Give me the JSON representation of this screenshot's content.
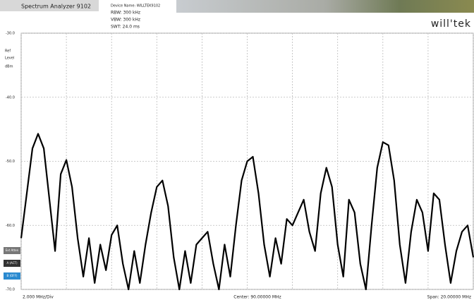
{
  "header": {
    "title": "Spectrum Analyzer 9102",
    "device": "Device Name: WILLTEK9102",
    "rbw": "RBW:  300 kHz",
    "vbw": "VBW:  300 kHz",
    "swt": "SWT:  24.0 ms",
    "logo": "will'tek"
  },
  "side_buttons": [
    "Ext Atten",
    "A (ACT)",
    "B (OFF)"
  ],
  "chart_data": {
    "type": "line",
    "y_label": [
      "Ref",
      "Level",
      "dBm"
    ],
    "x_div_label": "2.000 MHz/Div",
    "center_label": "Center: 90.00000 MHz",
    "span_label": "Span: 20.00000 MHz",
    "xlim": [
      80,
      100
    ],
    "xticks": [
      80,
      82,
      84,
      86,
      88,
      90,
      92,
      94,
      96,
      98,
      100
    ],
    "ylim": [
      -70,
      -30
    ],
    "yticks": [
      {
        "value": -30,
        "label": "-30.0"
      },
      {
        "value": -40,
        "label": "-40.0"
      },
      {
        "value": -50,
        "label": "-50.0"
      },
      {
        "value": -60,
        "label": "-60.0"
      },
      {
        "value": -70,
        "label": "-70.0"
      }
    ],
    "grid": true,
    "color": "#000000",
    "x": [
      80,
      80.25,
      80.5,
      80.75,
      81,
      81.25,
      81.5,
      81.75,
      82,
      82.25,
      82.5,
      82.75,
      83,
      83.25,
      83.5,
      83.75,
      84,
      84.25,
      84.5,
      84.75,
      85,
      85.25,
      85.5,
      85.75,
      86,
      86.25,
      86.5,
      86.75,
      87,
      87.25,
      87.5,
      87.75,
      88,
      88.25,
      88.5,
      88.75,
      89,
      89.25,
      89.5,
      89.75,
      90,
      90.25,
      90.5,
      90.75,
      91,
      91.25,
      91.5,
      91.75,
      92,
      92.25,
      92.5,
      92.75,
      93,
      93.25,
      93.5,
      93.75,
      94,
      94.25,
      94.5,
      94.75,
      95,
      95.25,
      95.5,
      95.75,
      96,
      96.25,
      96.5,
      96.75,
      97,
      97.25,
      97.5,
      97.75,
      98,
      98.25,
      98.5,
      98.75,
      99,
      99.25,
      99.5,
      99.75,
      100
    ],
    "values": [
      -62,
      -55,
      -48,
      -45.7,
      -48,
      -56,
      -64,
      -52,
      -49.8,
      -54,
      -62,
      -68,
      -62,
      -69,
      -63,
      -67,
      -61.5,
      -60,
      -66,
      -70,
      -64,
      -69,
      -63,
      -58,
      -54,
      -53,
      -57,
      -65,
      -70,
      -64,
      -69,
      -63,
      -62,
      -61,
      -66,
      -70,
      -63,
      -68,
      -60,
      -53,
      -50,
      -49.3,
      -55,
      -63,
      -68,
      -62,
      -66,
      -59,
      -60,
      -58,
      -56,
      -61,
      -64,
      -55,
      -51,
      -54,
      -63,
      -68,
      -56,
      -58,
      -66,
      -70,
      -60,
      -51,
      -47,
      -47.5,
      -53,
      -63,
      -69,
      -61,
      -56,
      -58,
      -64,
      -55,
      -56,
      -63,
      -69,
      -64,
      -61,
      -60,
      -65
    ]
  }
}
